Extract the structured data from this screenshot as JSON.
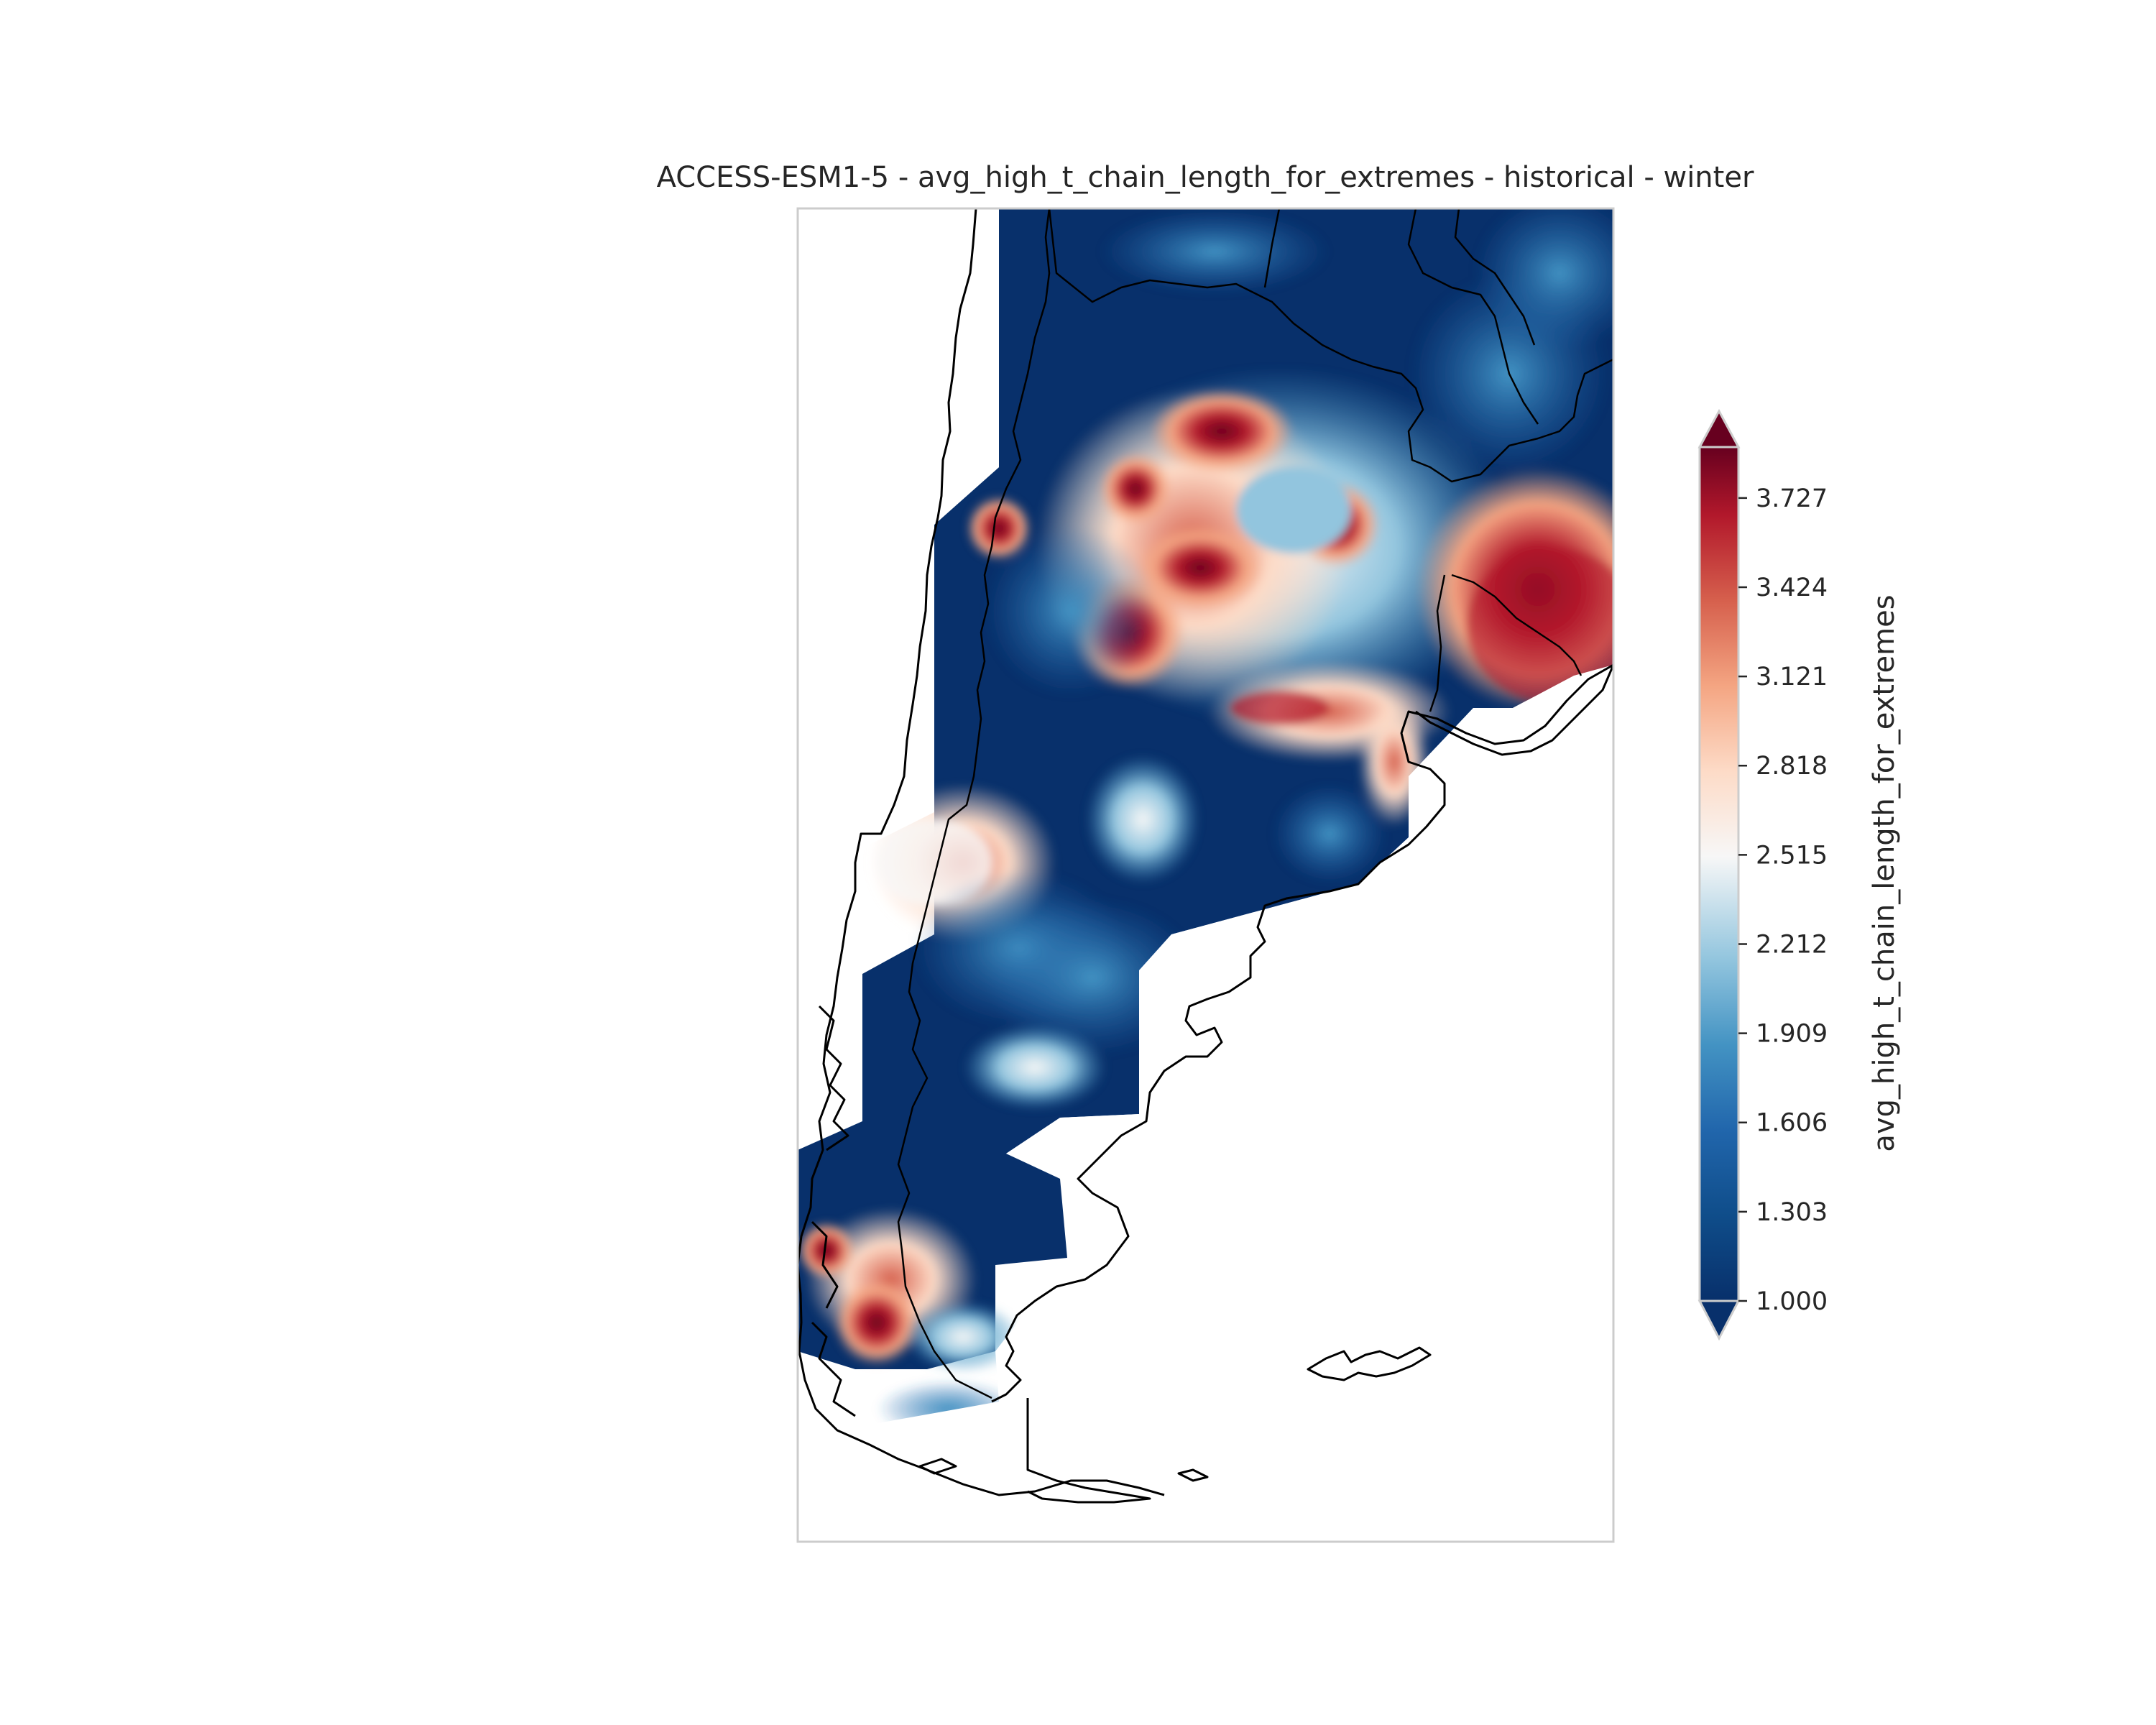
{
  "title": "ACCESS-ESM1-5 - avg_high_t_chain_length_for_extremes - historical - winter",
  "colorbar": {
    "label": "avg_high_t_chain_length_for_extremes",
    "min": 1.0,
    "max": 3.9,
    "extend": "both",
    "ticks": [
      "1.000",
      "1.303",
      "1.606",
      "1.909",
      "2.212",
      "2.515",
      "2.818",
      "3.121",
      "3.424",
      "3.727"
    ],
    "colormap": [
      "#08306b",
      "#0f4d8a",
      "#2166ac",
      "#4393c3",
      "#92c5de",
      "#f7f7f7",
      "#fddbc7",
      "#f4a582",
      "#d6604d",
      "#b2182b",
      "#67001f"
    ]
  },
  "map": {
    "region": "southern South America (Argentina, Chile, Uruguay, Paraguay, Falkland Islands)",
    "coastline_color": "#000000"
  },
  "chart_data": {
    "type": "heatmap",
    "title": "ACCESS-ESM1-5 - avg_high_t_chain_length_for_extremes - historical - winter",
    "colorbar_label": "avg_high_t_chain_length_for_extremes",
    "value_range": [
      1.0,
      3.9
    ],
    "colorbar_ticks": [
      1.0,
      1.303,
      1.606,
      1.909,
      2.212,
      2.515,
      2.818,
      3.121,
      3.424,
      3.727
    ]
  }
}
